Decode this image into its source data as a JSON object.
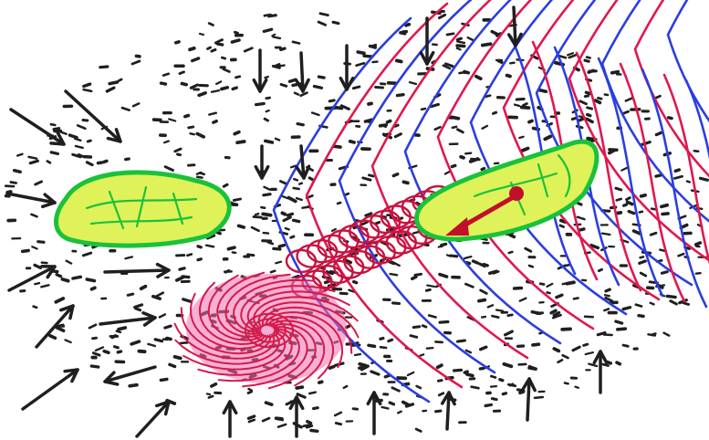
{
  "drawing": {
    "background": "#ffffff",
    "colors": {
      "ink": "#1f1f1f",
      "field_blue": "#2b3ee0",
      "field_red": "#e0184e",
      "blob_outline": "#19c23a",
      "blob_fill": "#dff25a",
      "vortex_fill": "#f06fb0",
      "vortex_stroke": "#d41a4a",
      "chain": "#c8123f",
      "vector": "#c0102b"
    },
    "icons": {
      "arrow": "hand-drawn-arrow",
      "blob": "green-cell-blob",
      "vortex": "red-spiral-vortex",
      "chain": "red-loop-chain",
      "vector": "red-force-arrow"
    }
  }
}
